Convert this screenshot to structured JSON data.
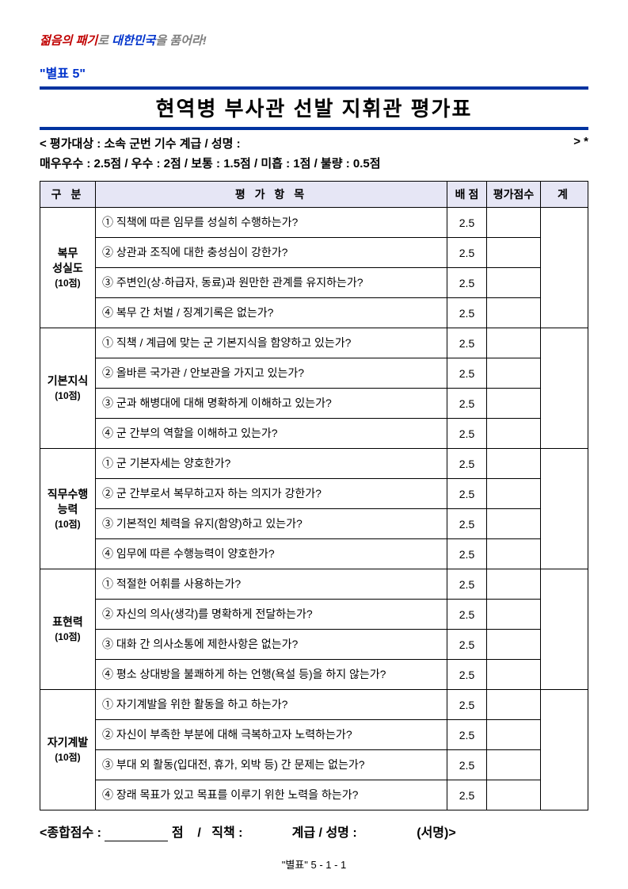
{
  "slogan": {
    "part1": "젊음의 패기",
    "part2": "로 ",
    "part3": "대한민국",
    "part4": "을 품어라!"
  },
  "attach_label": "\"별표 5\"",
  "title": "현역병 부사관 선발 지휘관 평가표",
  "subject_line_left": "< 평가대상 :   소속                    군번            기수             계급 / 성명 :",
  "subject_line_right": "> *",
  "scale_line": "매우우수 : 2.5점  /  우수 : 2점  /  보통 : 1.5점  /  미흡 : 1점  /  불량 : 0.5점",
  "columns": {
    "c1": "구 분",
    "c2": "평 가 항 목",
    "c3": "배 점",
    "c4": "평가점수",
    "c5": "계"
  },
  "categories": [
    {
      "name": "복무\n성실도",
      "points_label": "(10점)",
      "items": [
        {
          "text": "① 직책에 따른 임무를 성실히 수행하는가?",
          "score": "2.5"
        },
        {
          "text": "② 상관과 조직에 대한 충성심이 강한가?",
          "score": "2.5"
        },
        {
          "text": "③ 주변인(상·하급자, 동료)과 원만한 관계를 유지하는가?",
          "score": "2.5"
        },
        {
          "text": "④ 복무 간 처벌 / 징계기록은 없는가?",
          "score": "2.5"
        }
      ]
    },
    {
      "name": "기본지식",
      "points_label": "(10점)",
      "items": [
        {
          "text": "① 직책 / 계급에 맞는 군 기본지식을 함양하고 있는가?",
          "score": "2.5"
        },
        {
          "text": "② 올바른 국가관 / 안보관을 가지고 있는가?",
          "score": "2.5"
        },
        {
          "text": "③ 군과 해병대에 대해 명확하게 이해하고 있는가?",
          "score": "2.5"
        },
        {
          "text": "④ 군 간부의 역할을 이해하고 있는가?",
          "score": "2.5"
        }
      ]
    },
    {
      "name": "직무수행\n능력",
      "points_label": "(10점)",
      "items": [
        {
          "text": "① 군 기본자세는 양호한가?",
          "score": "2.5"
        },
        {
          "text": "② 군 간부로서 복무하고자 하는 의지가 강한가?",
          "score": "2.5"
        },
        {
          "text": "③ 기본적인 체력을 유지(함양)하고 있는가?",
          "score": "2.5"
        },
        {
          "text": "④ 임무에 따른 수행능력이 양호한가?",
          "score": "2.5"
        }
      ]
    },
    {
      "name": "표현력",
      "points_label": "(10점)",
      "items": [
        {
          "text": "① 적절한 어휘를 사용하는가?",
          "score": "2.5"
        },
        {
          "text": "② 자신의 의사(생각)를 명확하게 전달하는가?",
          "score": "2.5"
        },
        {
          "text": "③ 대화 간 의사소통에 제한사항은 없는가?",
          "score": "2.5"
        },
        {
          "text": "④ 평소 상대방을 불쾌하게 하는 언행(욕설 등)을 하지 않는가?",
          "score": "2.5"
        }
      ]
    },
    {
      "name": "자기계발",
      "points_label": "(10점)",
      "items": [
        {
          "text": "① 자기계발을 위한 활동을 하고 하는가?",
          "score": "2.5"
        },
        {
          "text": "② 자신이 부족한 부분에 대해 극복하고자 노력하는가?",
          "score": "2.5"
        },
        {
          "text": "③ 부대 외 활동(입대전, 휴가, 외박 등) 간 문제는 없는가?",
          "score": "2.5"
        },
        {
          "text": "④ 장래 목표가 있고 목표를 이루기 위한 노력을 하는가?",
          "score": "2.5"
        }
      ]
    }
  ],
  "footer": {
    "total_label": "<종합점수 :",
    "points_word": "점",
    "slash": "/",
    "duty_label": "직책 :",
    "rank_label": "계급 / 성명 :",
    "sign_label": "(서명)>"
  },
  "page_num": "\"별표\" 5 - 1 - 1",
  "colors": {
    "accent": "#0033a0",
    "red": "#c00000",
    "blue": "#0033cc",
    "gray": "#7f7f7f",
    "header_bg": "#e6e6f5"
  }
}
